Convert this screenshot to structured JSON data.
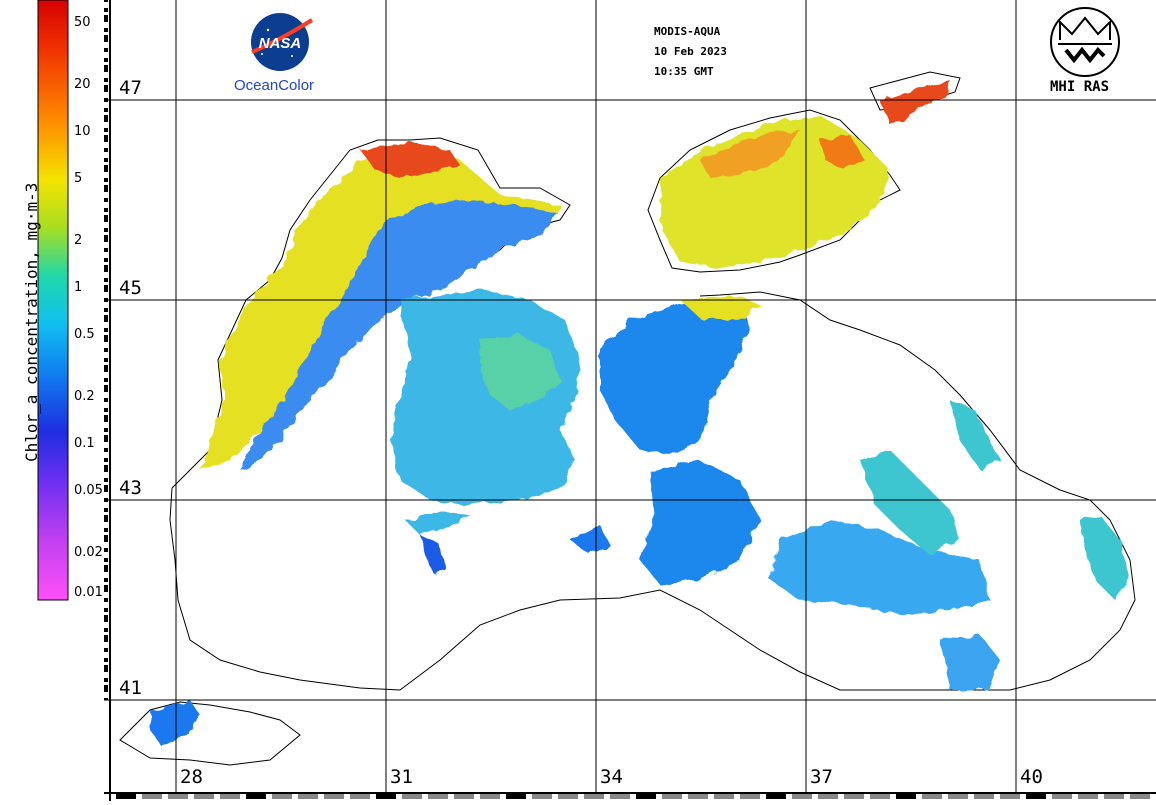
{
  "product": {
    "sensor": "MODIS-AQUA",
    "date": "10 Feb 2023",
    "time": "10:35 GMT"
  },
  "logos": {
    "nasa_text": "NASA",
    "ocean_color": "OceanColor",
    "mhi": "MHI RAS"
  },
  "colorbar": {
    "title": "Chlor_a concentration, mg·m-3",
    "ticks": [
      "50",
      "20",
      "10",
      "5",
      "2",
      "1",
      "0.5",
      "0.2",
      "0.1",
      "0.05",
      "0.02",
      "0.01"
    ],
    "scale": "log",
    "colors": [
      "#d40000",
      "#f06000",
      "#ffa500",
      "#f4e400",
      "#8ad62a",
      "#12d2b8",
      "#10b0f0",
      "#1070f0",
      "#2020e0",
      "#8030f0",
      "#d040f0",
      "#ff40ff"
    ]
  },
  "grid": {
    "latitudes": [
      "47",
      "45",
      "43",
      "41"
    ],
    "longitudes": [
      "28",
      "31",
      "34",
      "37",
      "40"
    ]
  }
}
